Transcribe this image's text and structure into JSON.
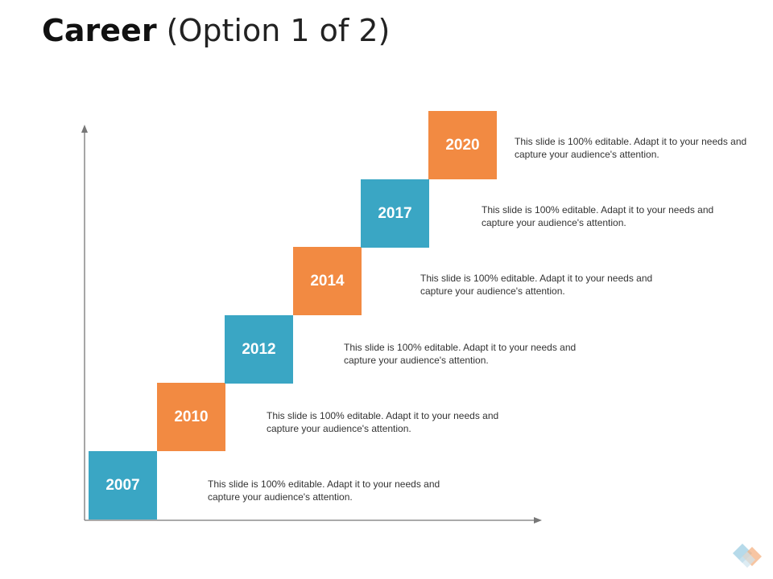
{
  "title": {
    "bold": "Career",
    "light": "(Option 1 of 2)"
  },
  "colors": {
    "teal": "#3aa6c4",
    "orange": "#f28a42",
    "axis": "#777777"
  },
  "steps": [
    {
      "year": "2007",
      "color": "teal",
      "text": "This slide is 100% editable. Adapt it to your needs and capture your audience's attention."
    },
    {
      "year": "2010",
      "color": "orange",
      "text": "This slide is 100% editable. Adapt it to your needs and capture your audience's attention."
    },
    {
      "year": "2012",
      "color": "teal",
      "text": "This slide is 100% editable. Adapt it to your needs and capture your audience's attention."
    },
    {
      "year": "2014",
      "color": "orange",
      "text": "This slide is 100% editable. Adapt it to your needs and capture your audience's attention."
    },
    {
      "year": "2017",
      "color": "teal",
      "text": "This slide is 100% editable. Adapt it to your needs and capture your audience's attention."
    },
    {
      "year": "2020",
      "color": "orange",
      "text": "This slide is 100% editable. Adapt it to your needs and capture your audience's attention."
    }
  ],
  "logo_icon": "diamond-logo-icon"
}
